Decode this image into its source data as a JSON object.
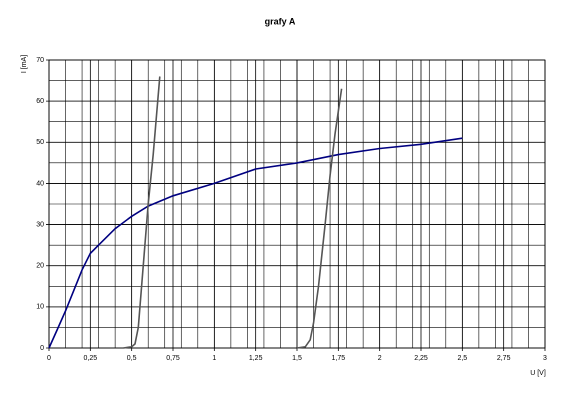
{
  "chart_data": {
    "type": "line",
    "title": "grafy A",
    "xlabel": "U [V]",
    "ylabel": "I [mA]",
    "xlim": [
      0,
      3
    ],
    "ylim": [
      0,
      70
    ],
    "xticks": [
      0,
      {
        "value": 0.25,
        "label": "0,25"
      },
      {
        "value": 0.5,
        "label": "0,5"
      },
      {
        "value": 0.75,
        "label": "0,75"
      },
      1,
      {
        "value": 1.25,
        "label": "1,25"
      },
      {
        "value": 1.5,
        "label": "1,5"
      },
      {
        "value": 1.75,
        "label": "1,75"
      },
      2,
      {
        "value": 2.25,
        "label": "2,25"
      },
      {
        "value": 2.5,
        "label": "2,5"
      },
      {
        "value": 2.75,
        "label": "2,75"
      },
      3
    ],
    "yticks": [
      0,
      10,
      20,
      30,
      40,
      50,
      60,
      70
    ],
    "grid": true,
    "minor_grid": {
      "x": 0.1,
      "y": 5
    },
    "series": [
      {
        "color": "#000080",
        "x": [
          0,
          0.05,
          0.1,
          0.15,
          0.2,
          0.25,
          0.3,
          0.4,
          0.5,
          0.6,
          0.75,
          1,
          1.25,
          1.5,
          1.75,
          2,
          2.25,
          2.5
        ],
        "values": [
          0,
          4.5,
          9,
          14,
          19,
          23,
          25,
          29,
          32,
          34.5,
          37,
          40,
          43.5,
          45,
          47,
          48.5,
          49.5,
          51
        ]
      },
      {
        "color": "#555555",
        "x": [
          0.45,
          0.5,
          0.52,
          0.54,
          0.56,
          0.58,
          0.6,
          0.63,
          0.67
        ],
        "values": [
          0,
          0.3,
          1,
          5,
          15,
          25,
          35,
          47,
          66
        ]
      },
      {
        "color": "#555555",
        "x": [
          1.5,
          1.55,
          1.58,
          1.6,
          1.63,
          1.67,
          1.7,
          1.73,
          1.77
        ],
        "values": [
          0,
          0.3,
          2,
          6,
          15,
          30,
          42,
          52,
          63
        ]
      }
    ]
  }
}
